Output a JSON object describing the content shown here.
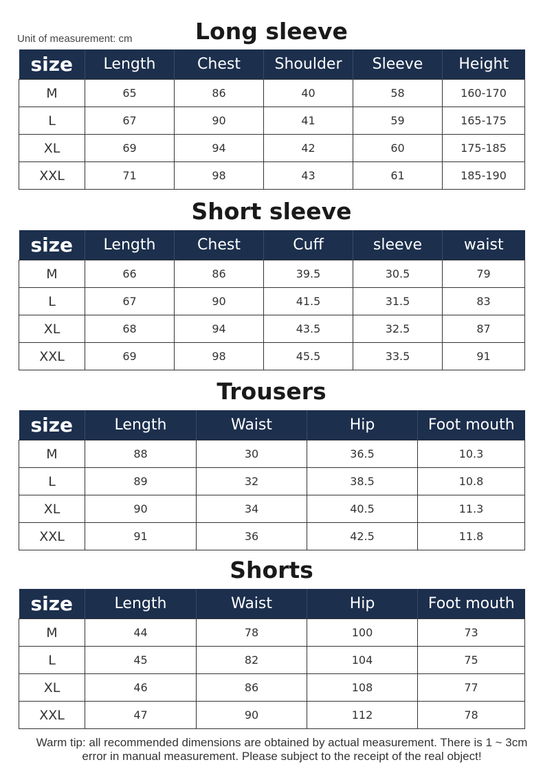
{
  "unit_label": "Unit of measurement: cm",
  "tables": [
    {
      "title": "Long sleeve",
      "headers": [
        "size",
        "Length",
        "Chest",
        "Shoulder",
        "Sleeve",
        "Height"
      ],
      "rows": [
        [
          "M",
          "65",
          "86",
          "40",
          "58",
          "160-170"
        ],
        [
          "L",
          "67",
          "90",
          "41",
          "59",
          "165-175"
        ],
        [
          "XL",
          "69",
          "94",
          "42",
          "60",
          "175-185"
        ],
        [
          "XXL",
          "71",
          "98",
          "43",
          "61",
          "185-190"
        ]
      ]
    },
    {
      "title": "Short sleeve",
      "headers": [
        "size",
        "Length",
        "Chest",
        "Cuff",
        "sleeve",
        "waist"
      ],
      "rows": [
        [
          "M",
          "66",
          "86",
          "39.5",
          "30.5",
          "79"
        ],
        [
          "L",
          "67",
          "90",
          "41.5",
          "31.5",
          "83"
        ],
        [
          "XL",
          "68",
          "94",
          "43.5",
          "32.5",
          "87"
        ],
        [
          "XXL",
          "69",
          "98",
          "45.5",
          "33.5",
          "91"
        ]
      ]
    },
    {
      "title": "Trousers",
      "headers": [
        "size",
        "Length",
        "Waist",
        "Hip",
        "Foot mouth"
      ],
      "rows": [
        [
          "M",
          "88",
          "30",
          "36.5",
          "10.3"
        ],
        [
          "L",
          "89",
          "32",
          "38.5",
          "10.8"
        ],
        [
          "XL",
          "90",
          "34",
          "40.5",
          "11.3"
        ],
        [
          "XXL",
          "91",
          "36",
          "42.5",
          "11.8"
        ]
      ]
    },
    {
      "title": "Shorts",
      "headers": [
        "size",
        "Length",
        "Waist",
        "Hip",
        "Foot mouth"
      ],
      "rows": [
        [
          "M",
          "44",
          "78",
          "100",
          "73"
        ],
        [
          "L",
          "45",
          "82",
          "104",
          "75"
        ],
        [
          "XL",
          "46",
          "86",
          "108",
          "77"
        ],
        [
          "XXL",
          "47",
          "90",
          "112",
          "78"
        ]
      ]
    }
  ],
  "warm_tip": "Warm tip: all recommended dimensions are obtained by actual measurement. There is 1 ~ 3cm error in manual measurement. Please subject to the receipt of the real object!",
  "colors": {
    "header_bg": "#1c2f4d"
  }
}
